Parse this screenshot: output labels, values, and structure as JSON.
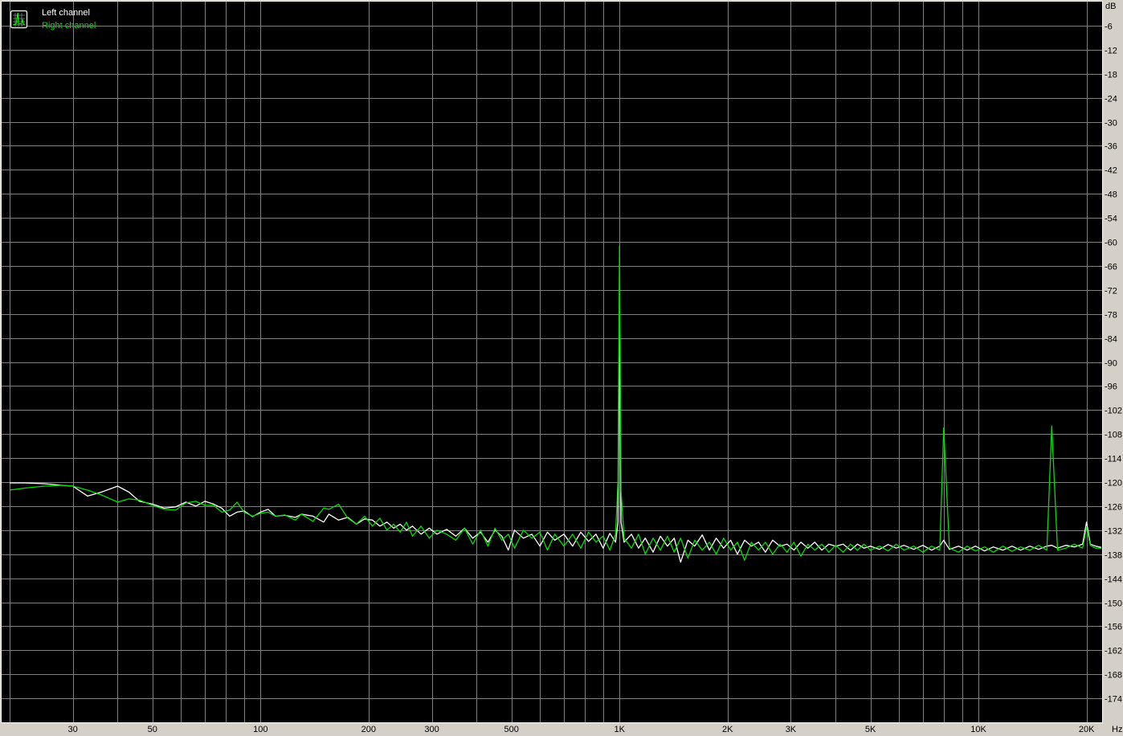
{
  "chart_data": {
    "type": "line",
    "title": "",
    "xlabel": "Hz",
    "ylabel": "dB",
    "x_scale": "log",
    "xlim": [
      19,
      22100
    ],
    "ylim": [
      -180,
      0
    ],
    "grid": true,
    "legend_placement": "top-left",
    "background": "#000000",
    "grid_color": "#808080",
    "y_ticks": [
      -6,
      -12,
      -18,
      -24,
      -30,
      -36,
      -42,
      -48,
      -54,
      -60,
      -66,
      -72,
      -78,
      -84,
      -90,
      -96,
      -102,
      -108,
      -114,
      -120,
      -126,
      -132,
      -138,
      -144,
      -150,
      -156,
      -162,
      -168,
      -174
    ],
    "x_ticks": [
      {
        "value": 30,
        "label": "30"
      },
      {
        "value": 50,
        "label": "50"
      },
      {
        "value": 100,
        "label": "100"
      },
      {
        "value": 200,
        "label": "200"
      },
      {
        "value": 300,
        "label": "300"
      },
      {
        "value": 500,
        "label": "500"
      },
      {
        "value": 1000,
        "label": "1K"
      },
      {
        "value": 2000,
        "label": "2K"
      },
      {
        "value": 3000,
        "label": "3K"
      },
      {
        "value": 5000,
        "label": "5K"
      },
      {
        "value": 10000,
        "label": "10K"
      },
      {
        "value": 20000,
        "label": "20K"
      }
    ],
    "x": [
      20,
      22,
      25,
      28,
      30,
      33,
      36,
      40,
      43,
      46,
      50,
      54,
      58,
      62,
      66,
      70,
      74,
      78,
      82,
      86,
      90,
      95,
      100,
      105,
      110,
      117,
      125,
      130,
      140,
      150,
      155,
      165,
      175,
      185,
      195,
      205,
      215,
      225,
      235,
      245,
      255,
      265,
      280,
      295,
      310,
      330,
      350,
      370,
      390,
      410,
      430,
      450,
      470,
      490,
      510,
      540,
      570,
      600,
      630,
      660,
      700,
      740,
      780,
      820,
      860,
      900,
      940,
      975,
      990,
      1000,
      1010,
      1030,
      1080,
      1130,
      1180,
      1240,
      1300,
      1360,
      1420,
      1480,
      1550,
      1620,
      1700,
      1780,
      1860,
      1950,
      2040,
      2130,
      2230,
      2330,
      2440,
      2550,
      2670,
      2800,
      2930,
      3060,
      3200,
      3350,
      3500,
      3660,
      3830,
      4000,
      4200,
      4400,
      4600,
      4800,
      5000,
      5300,
      5600,
      5900,
      6200,
      6600,
      7000,
      7400,
      7800,
      8000,
      8300,
      8800,
      9300,
      9800,
      10400,
      11000,
      11700,
      12400,
      13100,
      13900,
      14700,
      15500,
      16000,
      16600,
      17500,
      18500,
      19500,
      20000,
      20500,
      21200,
      22000
    ],
    "series": [
      {
        "name": "Left channel",
        "color": "#ffffff",
        "values": [
          -120.2,
          -120.2,
          -120.4,
          -120.8,
          -121,
          -123.5,
          -122.5,
          -121,
          -122.5,
          -124.8,
          -125.5,
          -126.5,
          -126.2,
          -125,
          -126,
          -124.8,
          -125.5,
          -126.5,
          -128.5,
          -127.5,
          -127.2,
          -128.6,
          -127.5,
          -126.8,
          -128.5,
          -128.3,
          -128.8,
          -128,
          -128.5,
          -130,
          -128,
          -129.5,
          -128.8,
          -130.5,
          -129.2,
          -129.5,
          -131,
          -130,
          -131.5,
          -130.5,
          -132,
          -131,
          -133,
          -131.5,
          -133,
          -131.8,
          -133.5,
          -131.5,
          -134,
          -132.5,
          -135,
          -132,
          -133.5,
          -137,
          -132,
          -134,
          -133,
          -136,
          -132.5,
          -134.5,
          -133,
          -136,
          -132.5,
          -134.8,
          -133,
          -136.5,
          -132.8,
          -135,
          -130,
          -78,
          -130,
          -135,
          -133,
          -136.5,
          -134,
          -137.5,
          -133.5,
          -136,
          -134,
          -140,
          -134.5,
          -136,
          -133.2,
          -137,
          -134,
          -136.5,
          -134.5,
          -138,
          -134.5,
          -136,
          -135,
          -137.5,
          -134.5,
          -136,
          -135.5,
          -137,
          -135,
          -136.5,
          -135,
          -137,
          -135.5,
          -136,
          -135.5,
          -137,
          -135.5,
          -136.5,
          -136,
          -136.8,
          -135.6,
          -136.5,
          -135.8,
          -136.8,
          -135.8,
          -137,
          -136,
          -134.5,
          -136.8,
          -136,
          -137,
          -136,
          -137.2,
          -136.2,
          -137,
          -136,
          -137,
          -136,
          -136.8,
          -136,
          -135.8,
          -136.5,
          -135.8,
          -136.2,
          -135.5,
          -130,
          -135.5,
          -136,
          -136.3
        ]
      },
      {
        "name": "Right channel",
        "color": "#00e000",
        "values": [
          -122,
          -121.5,
          -121,
          -120.8,
          -121,
          -122,
          -123.2,
          -125,
          -124.2,
          -124.5,
          -125.8,
          -126.8,
          -127,
          -125.2,
          -124.8,
          -125.8,
          -125.8,
          -127.5,
          -127,
          -125,
          -127.5,
          -128.5,
          -127.8,
          -127.5,
          -128.5,
          -128.2,
          -129.5,
          -128,
          -129.8,
          -126.5,
          -126.8,
          -125.5,
          -129,
          -130.5,
          -128.5,
          -131,
          -129,
          -132,
          -130.5,
          -132.5,
          -130,
          -133.5,
          -131,
          -134,
          -132,
          -133,
          -134.5,
          -131.5,
          -135.5,
          -132,
          -136,
          -131.5,
          -134.5,
          -133,
          -136.5,
          -132,
          -134,
          -132.5,
          -137,
          -133,
          -136,
          -133,
          -136.5,
          -132.5,
          -135,
          -133.5,
          -137,
          -133,
          -120,
          -61,
          -122,
          -134,
          -136.5,
          -133,
          -138,
          -134,
          -137,
          -133.5,
          -137.5,
          -134,
          -139,
          -134.5,
          -137,
          -135,
          -138,
          -134,
          -137,
          -135,
          -139.5,
          -135,
          -137,
          -135,
          -138,
          -135.5,
          -137.5,
          -135,
          -138.5,
          -135.5,
          -137,
          -135.5,
          -137.5,
          -135.8,
          -137.5,
          -135.5,
          -137,
          -135.5,
          -137,
          -136,
          -137.2,
          -135.5,
          -137,
          -136,
          -137.5,
          -136,
          -137,
          -106.5,
          -136.5,
          -137.5,
          -136,
          -137.2,
          -136.2,
          -137.5,
          -136,
          -137.3,
          -136.2,
          -137,
          -135.8,
          -137,
          -106,
          -137,
          -136.5,
          -135.5,
          -136.5,
          -131.4,
          -135.8,
          -136.5,
          -136.5
        ]
      }
    ]
  },
  "legend": {
    "icon": "spectrum-icon",
    "items": [
      "Left channel",
      "Right channel"
    ]
  },
  "axis": {
    "y_unit": "dB",
    "x_unit": "Hz"
  }
}
